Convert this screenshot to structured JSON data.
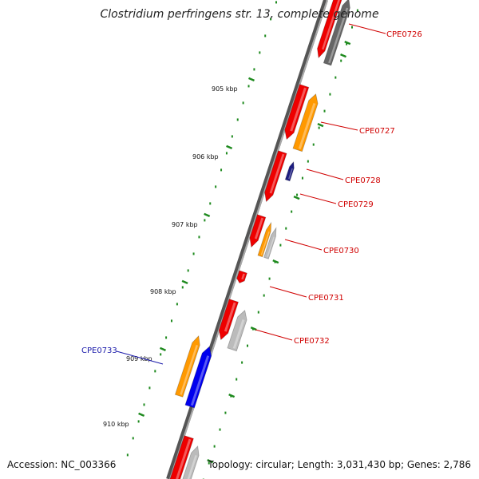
{
  "title": "Clostridium perfringens str. 13, complete genome",
  "footer": {
    "accession": "Accession: NC_003366",
    "topology": "Topology: circular; Length: 3,031,430 bp; Genes: 2,786"
  },
  "ruler_labels": [
    "905 kbp",
    "906 kbp",
    "907 kbp",
    "908 kbp",
    "909 kbp",
    "910 kbp"
  ],
  "gene_labels": [
    {
      "text": "CPE0726",
      "color": "#d00000"
    },
    {
      "text": "CPE0727",
      "color": "#d00000"
    },
    {
      "text": "CPE0728",
      "color": "#d00000"
    },
    {
      "text": "CPE0729",
      "color": "#d00000"
    },
    {
      "text": "CPE0730",
      "color": "#d00000"
    },
    {
      "text": "CPE0731",
      "color": "#d00000"
    },
    {
      "text": "CPE0732",
      "color": "#d00000"
    },
    {
      "text": "CPE0733",
      "color": "#1a1aaa"
    }
  ],
  "colors": {
    "backbone": "#8a8a8a",
    "tick": "#1e8a1e",
    "cds": "#ee0000",
    "gene_forward": "#ff9900",
    "gene_reverse": "#0000ee",
    "misc": "#bbbbbb",
    "dark": "#666666",
    "navy": "#1c1c80"
  }
}
